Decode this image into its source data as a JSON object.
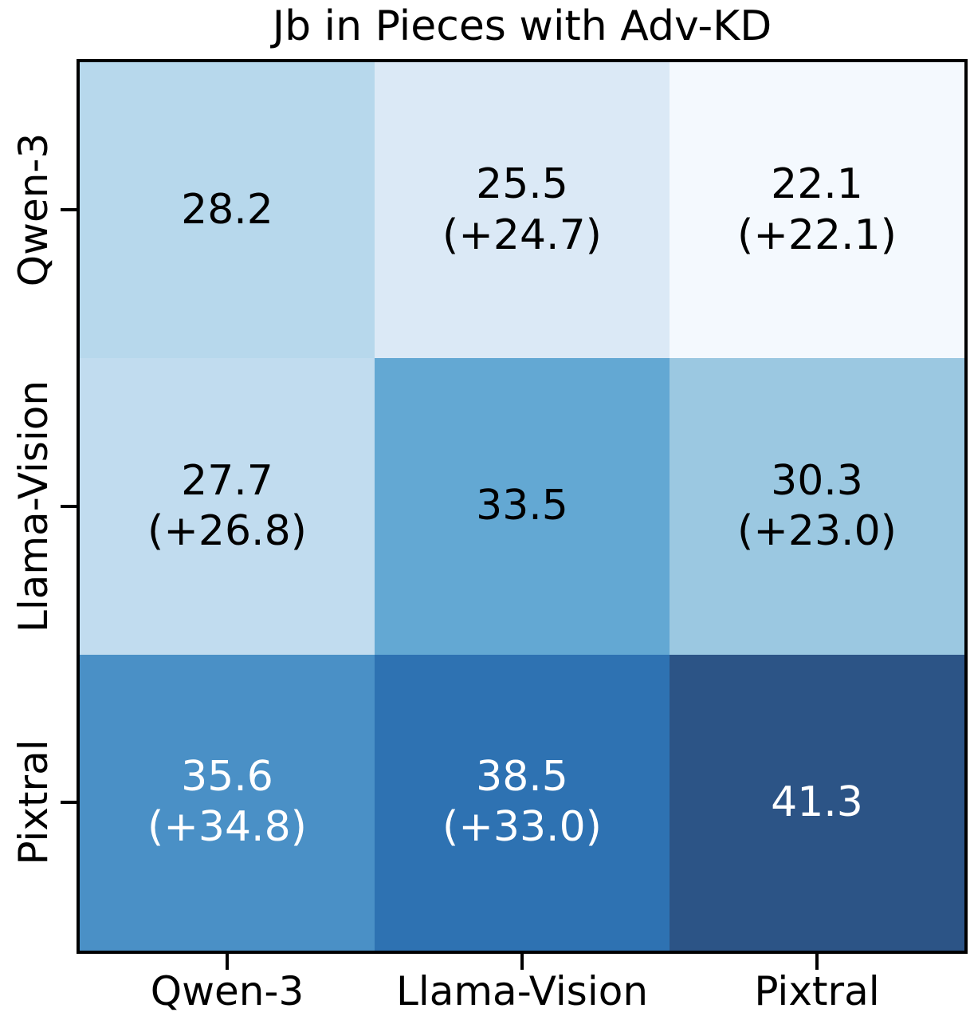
{
  "title": "Jb in Pieces with Adv-KD",
  "chart_data": {
    "type": "heatmap",
    "title": "Jb in Pieces with Adv-KD",
    "rows": [
      "Qwen-3",
      "Llama-Vision",
      "Pixtral"
    ],
    "columns": [
      "Qwen-3",
      "Llama-Vision",
      "Pixtral"
    ],
    "colormap": "Blues",
    "legend": "none",
    "grid": false,
    "cells": [
      {
        "row": "Qwen-3",
        "col": "Qwen-3",
        "value": 28.2,
        "delta": null,
        "value_label": "28.2",
        "delta_label": "",
        "color": "#b7d8ec",
        "text_color": "#000000"
      },
      {
        "row": "Qwen-3",
        "col": "Llama-Vision",
        "value": 25.5,
        "delta": 24.7,
        "value_label": "25.5",
        "delta_label": "(+24.7)",
        "color": "#dbe9f6",
        "text_color": "#000000"
      },
      {
        "row": "Qwen-3",
        "col": "Pixtral",
        "value": 22.1,
        "delta": 22.1,
        "value_label": "22.1",
        "delta_label": "(+22.1)",
        "color": "#f4f9fe",
        "text_color": "#000000"
      },
      {
        "row": "Llama-Vision",
        "col": "Qwen-3",
        "value": 27.7,
        "delta": 26.8,
        "value_label": "27.7",
        "delta_label": "(+26.8)",
        "color": "#c1dcef",
        "text_color": "#000000"
      },
      {
        "row": "Llama-Vision",
        "col": "Llama-Vision",
        "value": 33.5,
        "delta": null,
        "value_label": "33.5",
        "delta_label": "",
        "color": "#63a8d3",
        "text_color": "#000000"
      },
      {
        "row": "Llama-Vision",
        "col": "Pixtral",
        "value": 30.3,
        "delta": 23.0,
        "value_label": "30.3",
        "delta_label": "(+23.0)",
        "color": "#9bc8e1",
        "text_color": "#000000"
      },
      {
        "row": "Pixtral",
        "col": "Qwen-3",
        "value": 35.6,
        "delta": 34.8,
        "value_label": "35.6",
        "delta_label": "(+34.8)",
        "color": "#4a90c6",
        "text_color": "#ffffff"
      },
      {
        "row": "Pixtral",
        "col": "Llama-Vision",
        "value": 38.5,
        "delta": 33.0,
        "value_label": "38.5",
        "delta_label": "(+33.0)",
        "color": "#2e72b2",
        "text_color": "#ffffff"
      },
      {
        "row": "Pixtral",
        "col": "Pixtral",
        "value": 41.3,
        "delta": null,
        "value_label": "41.3",
        "delta_label": "",
        "color": "#2c5486",
        "text_color": "#ffffff"
      }
    ]
  }
}
